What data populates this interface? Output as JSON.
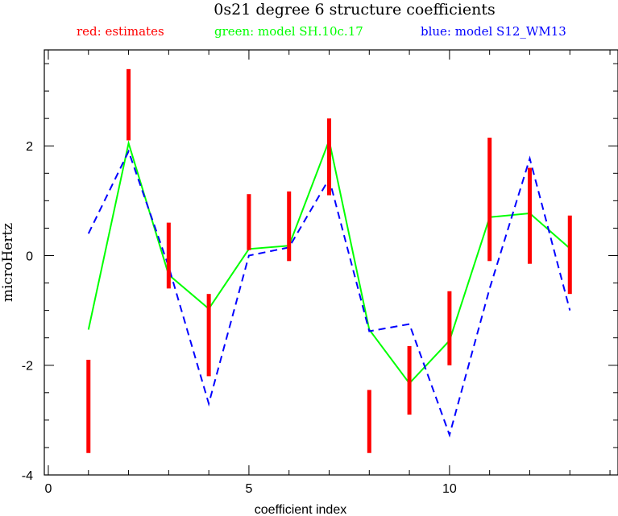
{
  "chart_data": {
    "type": "line",
    "title": "0s21 degree 6 structure coefficients",
    "legend": {
      "placement": "top",
      "entries": [
        {
          "label": "red: estimates",
          "color": "#ff0000"
        },
        {
          "label": "green: model SH.10c.17",
          "color": "#00ff00"
        },
        {
          "label": "blue: model S12_WM13",
          "color": "#0000ff"
        }
      ]
    },
    "xlabel": "coefficient index",
    "ylabel": "microHertz",
    "xlim": [
      -0.1,
      14.2
    ],
    "ylim": [
      -4.0,
      3.75
    ],
    "x_ticks": [
      {
        "value": 0,
        "label": "0"
      },
      {
        "value": 5,
        "label": "5"
      },
      {
        "value": 10,
        "label": "10"
      }
    ],
    "y_ticks": [
      {
        "value": -4,
        "label": "-4"
      },
      {
        "value": -2,
        "label": "-2"
      },
      {
        "value": 0,
        "label": "0"
      },
      {
        "value": 2,
        "label": "2"
      }
    ],
    "x_minor_step": 1,
    "y_minor_step": 0.5,
    "grid": false,
    "estimates": {
      "name": "estimates",
      "color": "#ff0000",
      "x": [
        1,
        2,
        3,
        4,
        5,
        6,
        7,
        8,
        9,
        10,
        11,
        12,
        13
      ],
      "low": [
        -3.6,
        2.1,
        -0.6,
        -2.2,
        0.1,
        -0.1,
        1.1,
        -3.6,
        -2.9,
        -2.0,
        -0.1,
        -0.15,
        -0.7
      ],
      "high": [
        -1.9,
        3.4,
        0.6,
        -0.7,
        1.12,
        1.17,
        2.5,
        -2.45,
        -1.65,
        -0.65,
        2.15,
        1.6,
        0.73
      ]
    },
    "series": [
      {
        "name": "model SH.10c.17",
        "color": "#00ff00",
        "dashed": false,
        "x": [
          1,
          2,
          3,
          4,
          5,
          6,
          7,
          8,
          9,
          10,
          11,
          12,
          13
        ],
        "values": [
          -1.35,
          2.05,
          -0.35,
          -0.97,
          0.12,
          0.18,
          2.1,
          -1.35,
          -2.33,
          -1.55,
          0.7,
          0.77,
          0.13
        ]
      },
      {
        "name": "model S12_WM13",
        "color": "#0000ff",
        "dashed": true,
        "x": [
          1,
          2,
          3,
          4,
          5,
          6,
          7,
          8,
          9,
          10,
          11,
          12,
          13
        ],
        "values": [
          0.4,
          1.9,
          -0.2,
          -2.7,
          0.0,
          0.15,
          1.4,
          -1.38,
          -1.25,
          -3.27,
          -0.6,
          1.77,
          -1.0
        ]
      }
    ]
  }
}
